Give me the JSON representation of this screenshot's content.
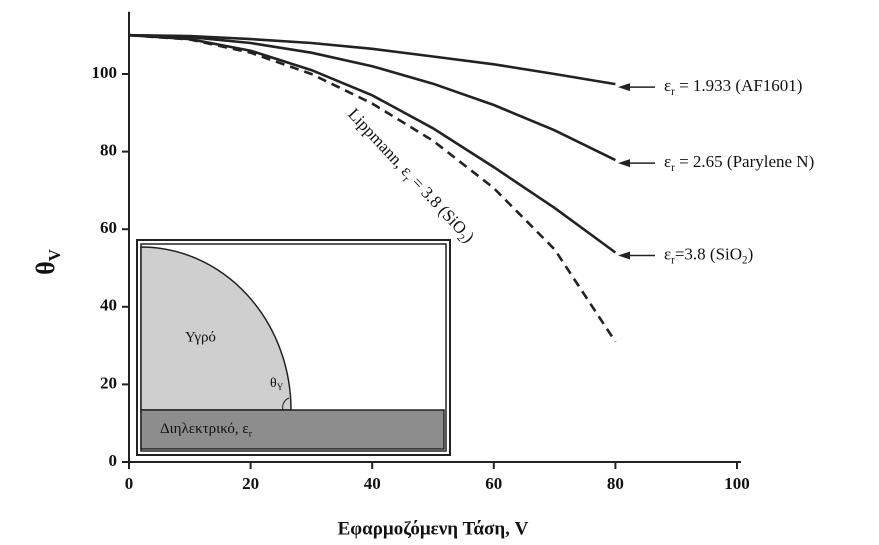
{
  "chart_data": {
    "type": "line",
    "y_label_parts": [
      "θ",
      "V"
    ],
    "x_label": "Εφαρμοζόμενη Τάση, V",
    "x": [
      0,
      10,
      20,
      30,
      40,
      50,
      60,
      70,
      80
    ],
    "series": [
      {
        "color": "#222222",
        "dashed": false,
        "values": [
          110,
          109.8,
          109,
          108,
          106.5,
          104.5,
          102.5,
          100,
          97.4
        ]
      },
      {
        "color": "#222222",
        "dashed": false,
        "values": [
          110,
          109.5,
          108,
          105.5,
          102,
          97.5,
          92,
          85.5,
          77.8
        ]
      },
      {
        "color": "#222222",
        "dashed": false,
        "values": [
          110,
          109,
          106,
          101,
          94.5,
          86,
          76,
          65.5,
          54
        ]
      },
      {
        "color": "#222222",
        "dashed": true,
        "values": [
          110,
          108.9,
          105.5,
          100,
          92.4,
          82.8,
          70.6,
          54.8,
          31
        ]
      }
    ],
    "annotations": [
      {
        "parts": [
          "ε",
          "r",
          " = 1.933 (AF1601)"
        ]
      },
      {
        "parts": [
          "ε",
          "r",
          " = 2.65 (Parylene N)"
        ]
      },
      {
        "parts": [
          "ε",
          "r",
          "=3.8 (SiO",
          "2",
          ")"
        ]
      },
      {
        "parts": [
          "Lippmann, ε",
          "r",
          " = 3.8 (SiO",
          "2",
          ")"
        ]
      }
    ],
    "inset": {
      "liquid": "Υγρό",
      "angle_parts": [
        "θ",
        "Y"
      ],
      "dielectric_parts": [
        "Διηλεκτρικό, ε",
        "r"
      ]
    },
    "xlim": [
      0,
      100
    ],
    "xticks": [
      0,
      20,
      40,
      60,
      80,
      100
    ],
    "ylim": [
      0,
      115
    ],
    "yticks": [
      0,
      20,
      40,
      60,
      80,
      100
    ]
  }
}
